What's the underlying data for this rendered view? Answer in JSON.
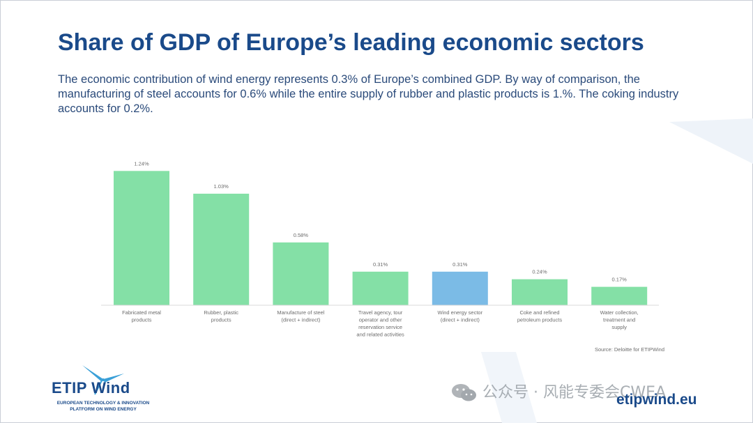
{
  "slide": {
    "title": "Share of GDP of Europe’s leading economic sectors",
    "subtitle": "The economic contribution of wind energy represents 0.3% of Europe’s combined GDP. By way of comparison, the manufacturing of steel accounts for 0.6% while the entire supply of rubber and plastic products is 1.%. The coking industry accounts for 0.2%.",
    "source": "Source: Deloitte for ETIPWind",
    "website": "etipwind.eu"
  },
  "logo": {
    "name": "ETIP Wind",
    "line1": "EUROPEAN TECHNOLOGY & INNOVATION",
    "line2": "PLATFORM ON WIND ENERGY"
  },
  "watermark": {
    "text": "公众号 · 风能专委会CWEA",
    "icon": "wechat-icon"
  },
  "colors": {
    "title": "#1a4a8a",
    "bar_default": "#84e0a6",
    "bar_highlight": "#7bbbe6",
    "label": "#6b6b6b"
  },
  "chart_data": {
    "type": "bar",
    "categories": [
      [
        "Fabricated metal",
        "products"
      ],
      [
        "Rubber, plastic",
        "products"
      ],
      [
        "Manufacture of steel",
        "(direct + indirect)"
      ],
      [
        "Travel agency, tour",
        "operator and other",
        "reservation service",
        "and related activities"
      ],
      [
        "Wind energy sector",
        "(direct + indirect)"
      ],
      [
        "Coke and refined",
        "petroleum products"
      ],
      [
        "Water collection,",
        "treatment and",
        "supply"
      ]
    ],
    "values": [
      1.24,
      1.03,
      0.58,
      0.31,
      0.31,
      0.24,
      0.17
    ],
    "value_labels": [
      "1.24%",
      "1.03%",
      "0.58%",
      "0.31%",
      "0.31%",
      "0.24%",
      "0.17%"
    ],
    "highlight_index": 4,
    "ylim": [
      0,
      1.3
    ],
    "xlabel": "",
    "ylabel": "",
    "grid": false
  }
}
